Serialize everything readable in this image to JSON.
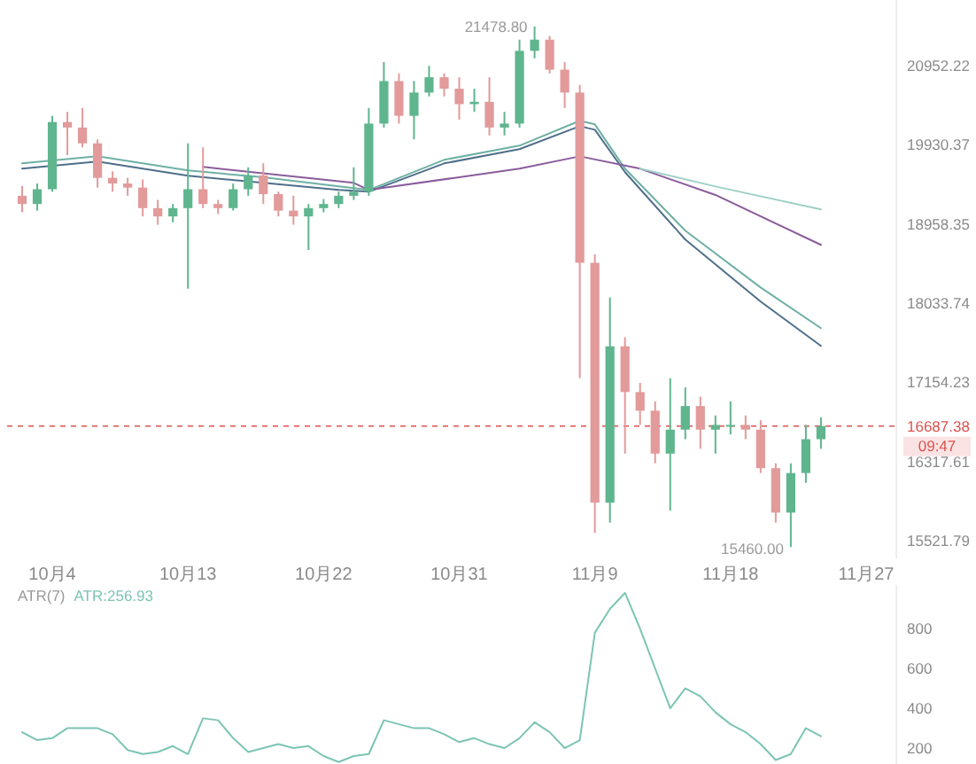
{
  "chart_data": [
    {
      "type": "candlestick",
      "log": "y",
      "ylim": [
        15350,
        21840
      ],
      "yticks": [
        15521.79,
        16317.61,
        17154.23,
        18033.74,
        18958.35,
        19930.37,
        20952.22
      ],
      "xlim": [
        "--10-01",
        "--11-29"
      ],
      "xticks": [
        {
          "value": "--10-04",
          "label": "10月4"
        },
        {
          "value": "--10-13",
          "label": "10月13"
        },
        {
          "value": "--10-22",
          "label": "10月22"
        },
        {
          "value": "--10-31",
          "label": "10月31"
        },
        {
          "value": "--11-09",
          "label": "11月9"
        },
        {
          "value": "--11-18",
          "label": "11月18"
        },
        {
          "value": "--11-27",
          "label": "11月27"
        }
      ],
      "x": [
        "--10-02",
        "--10-03",
        "--10-04",
        "--10-05",
        "--10-06",
        "--10-07",
        "--10-08",
        "--10-09",
        "--10-10",
        "--10-11",
        "--10-12",
        "--10-13",
        "--10-14",
        "--10-15",
        "--10-16",
        "--10-17",
        "--10-18",
        "--10-19",
        "--10-20",
        "--10-21",
        "--10-22",
        "--10-23",
        "--10-24",
        "--10-25",
        "--10-26",
        "--10-27",
        "--10-28",
        "--10-29",
        "--10-30",
        "--10-31",
        "--11-01",
        "--11-02",
        "--11-03",
        "--11-04",
        "--11-05",
        "--11-06",
        "--11-07",
        "--11-08",
        "--11-09",
        "--11-10",
        "--11-11",
        "--11-12",
        "--11-13",
        "--11-14",
        "--11-15",
        "--11-16",
        "--11-17",
        "--11-18",
        "--11-19",
        "--11-20",
        "--11-21",
        "--11-22",
        "--11-23",
        "--11-24"
      ],
      "ohlc": [
        [
          19300,
          19420,
          19100,
          19200
        ],
        [
          19200,
          19450,
          19120,
          19380
        ],
        [
          19380,
          20300,
          19350,
          20220
        ],
        [
          20220,
          20350,
          19800,
          20150
        ],
        [
          20150,
          20400,
          19900,
          19950
        ],
        [
          19950,
          20000,
          19400,
          19520
        ],
        [
          19520,
          19600,
          19350,
          19450
        ],
        [
          19450,
          19520,
          19300,
          19400
        ],
        [
          19400,
          19500,
          19050,
          19150
        ],
        [
          19150,
          19250,
          18950,
          19050
        ],
        [
          19050,
          19200,
          18980,
          19150
        ],
        [
          19150,
          19950,
          18200,
          19380
        ],
        [
          19380,
          19900,
          19150,
          19200
        ],
        [
          19200,
          19250,
          19080,
          19150
        ],
        [
          19150,
          19450,
          19120,
          19380
        ],
        [
          19380,
          19650,
          19300,
          19550
        ],
        [
          19550,
          19700,
          19200,
          19320
        ],
        [
          19320,
          19350,
          19050,
          19120
        ],
        [
          19120,
          19300,
          18950,
          19050
        ],
        [
          19050,
          19200,
          18650,
          19150
        ],
        [
          19150,
          19260,
          19100,
          19200
        ],
        [
          19200,
          19350,
          19150,
          19300
        ],
        [
          19300,
          19650,
          19250,
          19350
        ],
        [
          19350,
          20400,
          19300,
          20200
        ],
        [
          20200,
          21000,
          20150,
          20750
        ],
        [
          20750,
          20850,
          20200,
          20300
        ],
        [
          20300,
          20750,
          20000,
          20600
        ],
        [
          20600,
          20950,
          20550,
          20800
        ],
        [
          20800,
          20850,
          20550,
          20650
        ],
        [
          20650,
          20800,
          20250,
          20450
        ],
        [
          20450,
          20650,
          20350,
          20480
        ],
        [
          20480,
          20800,
          20050,
          20150
        ],
        [
          20150,
          20350,
          20050,
          20200
        ],
        [
          20200,
          21300,
          20150,
          21150
        ],
        [
          21150,
          21478.8,
          21050,
          21300
        ],
        [
          21300,
          21350,
          20850,
          20900
        ],
        [
          20900,
          21000,
          20400,
          20600
        ],
        [
          20600,
          20700,
          17200,
          18500
        ],
        [
          18500,
          18600,
          15600,
          15900
        ],
        [
          15900,
          18100,
          15700,
          17550
        ],
        [
          17550,
          17650,
          16400,
          17050
        ],
        [
          17050,
          17150,
          16700,
          16850
        ],
        [
          16850,
          16950,
          16300,
          16400
        ],
        [
          16400,
          17200,
          15820,
          16650
        ],
        [
          16650,
          17100,
          16550,
          16900
        ],
        [
          16900,
          17000,
          16450,
          16650
        ],
        [
          16650,
          16800,
          16400,
          16700
        ],
        [
          16700,
          16950,
          16600,
          16700
        ],
        [
          16700,
          16800,
          16550,
          16650
        ],
        [
          16650,
          16750,
          16200,
          16250
        ],
        [
          16250,
          16300,
          15700,
          15800
        ],
        [
          15800,
          16300,
          15460,
          16200
        ],
        [
          16200,
          16700,
          16100,
          16550
        ],
        [
          16550,
          16780,
          16450,
          16687.38
        ]
      ],
      "colors": [
        "#e29a9a",
        "#5fb58e",
        "#5fb58e",
        "#e29a9a",
        "#e29a9a",
        "#e29a9a",
        "#e29a9a",
        "#e29a9a",
        "#e29a9a",
        "#e29a9a",
        "#5fb58e",
        "#5fb58e",
        "#e29a9a",
        "#e29a9a",
        "#5fb58e",
        "#5fb58e",
        "#e29a9a",
        "#e29a9a",
        "#e29a9a",
        "#5fb58e",
        "#5fb58e",
        "#5fb58e",
        "#5fb58e",
        "#5fb58e",
        "#5fb58e",
        "#e29a9a",
        "#5fb58e",
        "#5fb58e",
        "#e29a9a",
        "#e29a9a",
        "#5fb58e",
        "#e29a9a",
        "#5fb58e",
        "#5fb58e",
        "#5fb58e",
        "#e29a9a",
        "#e29a9a",
        "#e29a9a",
        "#e29a9a",
        "#5fb58e",
        "#e29a9a",
        "#e29a9a",
        "#e29a9a",
        "#5fb58e",
        "#5fb58e",
        "#e29a9a",
        "#5fb58e",
        "#5fb58e",
        "#e29a9a",
        "#e29a9a",
        "#e29a9a",
        "#5fb58e",
        "#5fb58e",
        "#5fb58e"
      ],
      "series": [
        {
          "type": "line",
          "color": "#6fb0a4",
          "x": [
            "--10-02",
            "--10-07",
            "--10-13",
            "--10-18",
            "--10-23",
            "--10-25",
            "--10-30",
            "--11-04",
            "--11-08",
            "--11-09",
            "--11-11",
            "--11-15",
            "--11-20",
            "--11-24"
          ],
          "values": [
            19699,
            19787,
            19611,
            19526,
            19414,
            19371,
            19743,
            19921,
            20236,
            20190,
            19633,
            18879,
            18214,
            17752
          ]
        },
        {
          "type": "line",
          "color": "#4f6f8a",
          "x": [
            "--10-02",
            "--10-07",
            "--10-13",
            "--10-18",
            "--10-23",
            "--10-25",
            "--10-30",
            "--11-04",
            "--11-08",
            "--11-09",
            "--11-11",
            "--11-15",
            "--11-20",
            "--11-24"
          ],
          "values": [
            19633,
            19721,
            19545,
            19458,
            19371,
            19349,
            19699,
            19877,
            20167,
            20122,
            19590,
            18774,
            18053,
            17555
          ]
        },
        {
          "type": "line",
          "color": "#8a5c9c",
          "x": [
            "--10-14",
            "--10-24",
            "--10-25",
            "--11-04",
            "--11-08",
            "--11-12",
            "--11-17",
            "--11-24"
          ],
          "values": [
            19655,
            19458,
            19371,
            19633,
            19787,
            19633,
            19310,
            18711
          ]
        },
        {
          "type": "line",
          "color": "#9fd0c6",
          "x": [
            "--11-12",
            "--11-17",
            "--11-24"
          ],
          "values": [
            19633,
            19414,
            19135
          ]
        }
      ],
      "ref_lines": [
        {
          "axis": "y",
          "value": 16687.38,
          "label": "16687.38",
          "color": "#d9534f",
          "line_style": "dashed"
        }
      ],
      "annotations": [
        {
          "text": "21478.80",
          "x": "--11-05",
          "y": 21478.8
        },
        {
          "text": "15460.00",
          "x": "--11-22",
          "y": 15460
        },
        "09:47"
      ]
    },
    {
      "type": "line",
      "title": "ATR(7)",
      "ylim": [
        120,
        1020
      ],
      "yticks": [
        200,
        400,
        600,
        800
      ],
      "tick_labels": "y",
      "categories": [
        null,
        null,
        null,
        null,
        null,
        null,
        null,
        null,
        null,
        null,
        null,
        null,
        null,
        null,
        null,
        null,
        null,
        null,
        null,
        null,
        null,
        null,
        null,
        null,
        null,
        null,
        null,
        null,
        null,
        null,
        null,
        null,
        null,
        null,
        null,
        null,
        null,
        null,
        null,
        null,
        null,
        null,
        null,
        null,
        null,
        null,
        null,
        null,
        null,
        null,
        null,
        null,
        null,
        null
      ],
      "series": [
        {
          "name": "ATR:256.93",
          "color": "#7cc4b4",
          "values": [
            280,
            240,
            250,
            300,
            300,
            300,
            270,
            190,
            170,
            180,
            210,
            170,
            350,
            340,
            250,
            180,
            200,
            220,
            200,
            210,
            160,
            130,
            160,
            170,
            340,
            320,
            300,
            300,
            270,
            230,
            250,
            220,
            200,
            250,
            330,
            280,
            200,
            240,
            780,
            900,
            980,
            800,
            600,
            400,
            500,
            460,
            380,
            320,
            280,
            220,
            140,
            170,
            300,
            260
          ]
        }
      ]
    }
  ]
}
